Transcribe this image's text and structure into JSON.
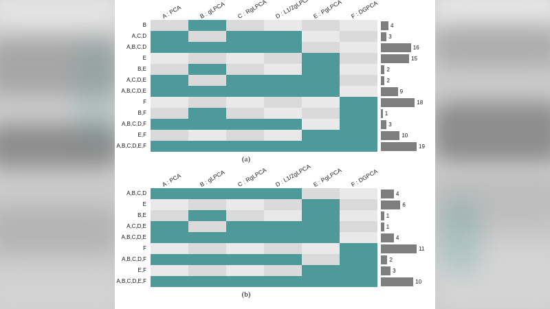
{
  "colors": {
    "filled": "#4e9a9b",
    "cell_light": "#e9e9e9",
    "cell_dark": "#dadada",
    "bar": "#7e7e7e",
    "page_bg": "#cbcbcb",
    "figure_bg": "#ffffff"
  },
  "chart_data": [
    {
      "type": "heatmap",
      "variant": "upset-membership-matrix",
      "title": "(a)",
      "legend_position": "none",
      "grid": false,
      "columns": [
        "A : PCA",
        "B : gLPCA",
        "C : RgLPCA",
        "D : L1/2gLPCA",
        "E : PgLPCA",
        "F : DGPCA"
      ],
      "column_keys": [
        "A",
        "B",
        "C",
        "D",
        "E",
        "F"
      ],
      "bar_axis_max": 19,
      "rows": [
        {
          "label": "B",
          "members": [
            "B"
          ],
          "count": 4
        },
        {
          "label": "A,C,D",
          "members": [
            "A",
            "C",
            "D"
          ],
          "count": 3
        },
        {
          "label": "A,B,C,D",
          "members": [
            "A",
            "B",
            "C",
            "D"
          ],
          "count": 16
        },
        {
          "label": "E",
          "members": [
            "E"
          ],
          "count": 15
        },
        {
          "label": "B,E",
          "members": [
            "B",
            "E"
          ],
          "count": 2
        },
        {
          "label": "A,C,D,E",
          "members": [
            "A",
            "C",
            "D",
            "E"
          ],
          "count": 2
        },
        {
          "label": "A,B,C,D,E",
          "members": [
            "A",
            "B",
            "C",
            "D",
            "E"
          ],
          "count": 9
        },
        {
          "label": "F",
          "members": [
            "F"
          ],
          "count": 18
        },
        {
          "label": "B,F",
          "members": [
            "B",
            "F"
          ],
          "count": 1
        },
        {
          "label": "A,B,C,D,F",
          "members": [
            "A",
            "B",
            "C",
            "D",
            "F"
          ],
          "count": 3
        },
        {
          "label": "E,F",
          "members": [
            "E",
            "F"
          ],
          "count": 10
        },
        {
          "label": "A,B,C,D,E,F",
          "members": [
            "A",
            "B",
            "C",
            "D",
            "E",
            "F"
          ],
          "count": 19
        }
      ]
    },
    {
      "type": "heatmap",
      "variant": "upset-membership-matrix",
      "title": "(b)",
      "legend_position": "none",
      "grid": false,
      "columns": [
        "A : PCA",
        "B : gLPCA",
        "C : RgLPCA",
        "D : L1/2gLPCA",
        "E : PgLPCA",
        "F : DGPCA"
      ],
      "column_keys": [
        "A",
        "B",
        "C",
        "D",
        "E",
        "F"
      ],
      "bar_axis_max": 11,
      "rows": [
        {
          "label": "A,B,C,D",
          "members": [
            "A",
            "B",
            "C",
            "D"
          ],
          "count": 4
        },
        {
          "label": "E",
          "members": [
            "E"
          ],
          "count": 6
        },
        {
          "label": "B,E",
          "members": [
            "B",
            "E"
          ],
          "count": 1
        },
        {
          "label": "A,C,D,E",
          "members": [
            "A",
            "C",
            "D",
            "E"
          ],
          "count": 1
        },
        {
          "label": "A,B,C,D,E",
          "members": [
            "A",
            "B",
            "C",
            "D",
            "E"
          ],
          "count": 4
        },
        {
          "label": "F",
          "members": [
            "F"
          ],
          "count": 11
        },
        {
          "label": "A,B,C,D,F",
          "members": [
            "A",
            "B",
            "C",
            "D",
            "F"
          ],
          "count": 2
        },
        {
          "label": "E,F",
          "members": [
            "E",
            "F"
          ],
          "count": 3
        },
        {
          "label": "A,B,C,D,E,F",
          "members": [
            "A",
            "B",
            "C",
            "D",
            "E",
            "F"
          ],
          "count": 10
        }
      ]
    }
  ]
}
